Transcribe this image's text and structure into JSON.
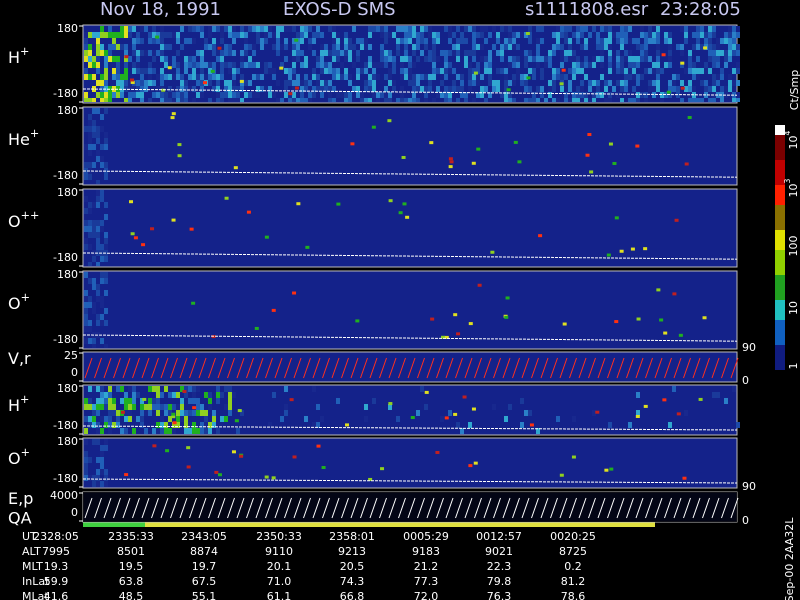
{
  "header": {
    "date": "Nov 18, 1991",
    "instrument": "EXOS-D SMS",
    "file": "s1111808.esr",
    "time": "23:28:05"
  },
  "panels": [
    {
      "label": "H",
      "sup": "+",
      "top": "180",
      "bottom": "-180"
    },
    {
      "label": "He",
      "sup": "+",
      "top": "180",
      "bottom": "-180"
    },
    {
      "label": "O",
      "sup": "++",
      "top": "180",
      "bottom": "-180"
    },
    {
      "label": "O",
      "sup": "+",
      "top": "180",
      "bottom": "-180",
      "right": "90"
    },
    {
      "label": "V,r",
      "top": "25",
      "bottom": "0",
      "right": "0"
    },
    {
      "label": "H",
      "sup": "+",
      "top": "180",
      "bottom": "-180"
    },
    {
      "label": "O",
      "sup": "+",
      "top": "180",
      "bottom": "-180",
      "right": "90"
    },
    {
      "label": "E,p",
      "label2": "QA",
      "top": "4000",
      "bottom": "0",
      "right": "0"
    }
  ],
  "colorbar": {
    "unit": "Ct/Smp",
    "labels": [
      {
        "text": "10",
        "sup": "4"
      },
      {
        "text": "10",
        "sup": "3"
      },
      {
        "text": "100"
      },
      {
        "text": "10"
      },
      {
        "text": "1"
      }
    ]
  },
  "footer": {
    "rows": [
      {
        "label": "UT",
        "values": [
          "2328:05",
          "2335:33",
          "2343:05",
          "2350:33",
          "2358:01",
          "0005:29",
          "0012:57",
          "0020:25"
        ]
      },
      {
        "label": "ALT",
        "values": [
          "7995",
          "8501",
          "8874",
          "9110",
          "9213",
          "9183",
          "9021",
          "8725"
        ]
      },
      {
        "label": "MLT",
        "values": [
          "19.3",
          "19.5",
          "19.7",
          "20.1",
          "20.5",
          "21.2",
          "22.3",
          "0.2"
        ]
      },
      {
        "label": "InLat",
        "values": [
          "59.9",
          "63.8",
          "67.5",
          "71.0",
          "74.3",
          "77.3",
          "79.8",
          "81.2"
        ]
      },
      {
        "label": "MLat",
        "values": [
          "41.6",
          "48.5",
          "55.1",
          "61.1",
          "66.8",
          "72.0",
          "76.3",
          "78.6"
        ]
      }
    ],
    "note": "Sep-00 2AA32L"
  }
}
